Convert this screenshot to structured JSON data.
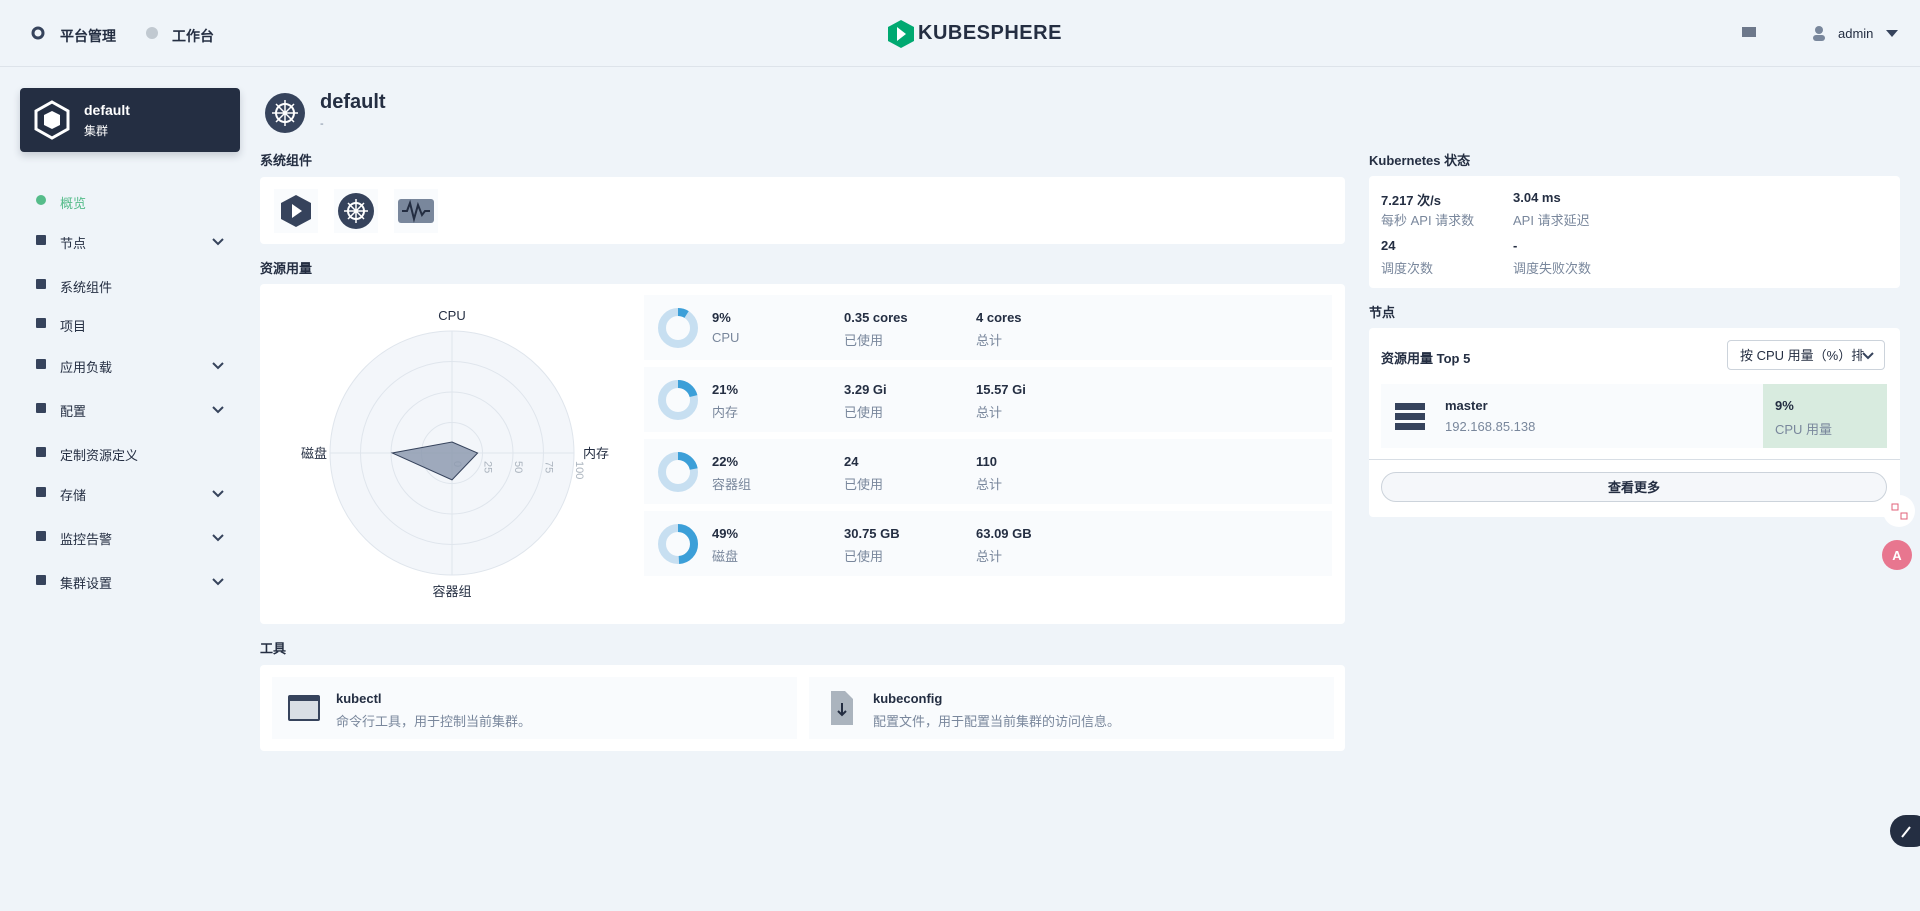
{
  "header": {
    "nav": [
      "平台管理",
      "工作台"
    ],
    "logo": "KUBESPHERE",
    "user": "admin"
  },
  "sidebar": {
    "cluster": {
      "name": "default",
      "type": "集群"
    },
    "menu": [
      {
        "label": "概览",
        "active": true,
        "expandable": false
      },
      {
        "label": "节点",
        "active": false,
        "expandable": true
      },
      {
        "label": "系统组件",
        "active": false,
        "expandable": false
      },
      {
        "label": "项目",
        "active": false,
        "expandable": false
      },
      {
        "label": "应用负载",
        "active": false,
        "expandable": true
      },
      {
        "label": "配置",
        "active": false,
        "expandable": true
      },
      {
        "label": "定制资源定义",
        "active": false,
        "expandable": false
      },
      {
        "label": "存储",
        "active": false,
        "expandable": true
      },
      {
        "label": "监控告警",
        "active": false,
        "expandable": true
      },
      {
        "label": "集群设置",
        "active": false,
        "expandable": true
      }
    ]
  },
  "overview": {
    "title": "default",
    "description": "-"
  },
  "components": {
    "title": "系统组件"
  },
  "resources": {
    "title": "资源用量",
    "rows": [
      {
        "used": "0.35 cores",
        "used_label": "已使用",
        "total": "4 cores",
        "total_label": "总计"
      },
      {
        "used": "3.29 Gi",
        "used_label": "已使用",
        "total": "15.57 Gi",
        "total_label": "总计"
      },
      {
        "used": "24",
        "used_label": "已使用",
        "total": "110",
        "total_label": "总计"
      },
      {
        "used": "30.75 GB",
        "used_label": "已使用",
        "total": "63.09 GB",
        "total_label": "总计"
      }
    ]
  },
  "chart_data": {
    "type": "radar",
    "categories": [
      "CPU",
      "内存",
      "容器组",
      "磁盘"
    ],
    "values": [
      9,
      21,
      22,
      49
    ],
    "value_labels": [
      "9%",
      "21%",
      "22%",
      "49%"
    ],
    "rlim": [
      0,
      100
    ],
    "rticks": [
      0,
      25,
      50,
      75,
      100
    ],
    "grid": true,
    "color": "#8e9bb0",
    "ring_color": "#3c9fd8"
  },
  "tools": {
    "title": "工具",
    "items": [
      {
        "name": "kubectl",
        "description": "命令行工具，用于控制当前集群。"
      },
      {
        "name": "kubeconfig",
        "description": "配置文件，用于配置当前集群的访问信息。"
      }
    ]
  },
  "kubernetes_status": {
    "title": "Kubernetes 状态",
    "items": [
      {
        "value": "7.217 次/s",
        "label": "每秒 API 请求数"
      },
      {
        "value": "3.04 ms",
        "label": "API 请求延迟"
      },
      {
        "value": "24",
        "label": "调度次数"
      },
      {
        "value": "-",
        "label": "调度失败次数"
      }
    ]
  },
  "nodes": {
    "title": "节点",
    "subtitle": "资源用量 Top 5",
    "sort_button": "按 CPU 用量（%）排",
    "items": [
      {
        "name": "master",
        "ip": "192.168.85.138",
        "usage": "9%",
        "metric": "CPU 用量"
      }
    ],
    "more": "查看更多"
  }
}
